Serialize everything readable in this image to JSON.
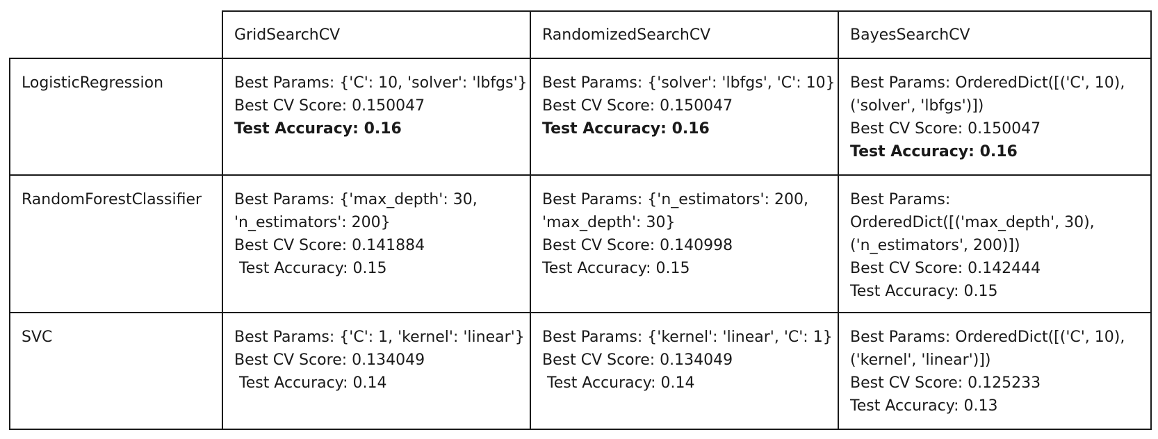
{
  "columns": [
    "GridSearchCV",
    "RandomizedSearchCV",
    "BayesSearchCV"
  ],
  "rows": [
    {
      "model": "LogisticRegression",
      "cells": [
        [
          "Best Params: {'C': 10, 'solver': 'lbfgs'}",
          "Best CV Score: 0.150047",
          "Test Accuracy: 0.16"
        ],
        [
          "Best Params: {'solver': 'lbfgs', 'C': 10}",
          "Best CV Score: 0.150047",
          "Test Accuracy: 0.16"
        ],
        [
          "Best Params: OrderedDict([('C', 10),",
          "('solver', 'lbfgs')])",
          "Best CV Score: 0.150047",
          "Test Accuracy: 0.16"
        ]
      ]
    },
    {
      "model": "RandomForestClassifier",
      "cells": [
        [
          "Best Params: {'max_depth': 30,",
          "'n_estimators': 200}",
          "Best CV Score: 0.141884",
          " Test Accuracy: 0.15"
        ],
        [
          "Best Params: {'n_estimators': 200,",
          "'max_depth': 30}",
          "Best CV Score: 0.140998",
          "Test Accuracy: 0.15"
        ],
        [
          "Best Params:",
          "OrderedDict([('max_depth', 30),",
          "('n_estimators', 200)])",
          "Best CV Score: 0.142444",
          "Test Accuracy: 0.15"
        ]
      ]
    },
    {
      "model": "SVC",
      "cells": [
        [
          "Best Params: {'C': 1, 'kernel': 'linear'}",
          "Best CV Score: 0.134049",
          " Test Accuracy: 0.14"
        ],
        [
          "Best Params: {'kernel': 'linear', 'C': 1}",
          "Best CV Score: 0.134049",
          " Test Accuracy: 0.14"
        ],
        [
          "Best Params: OrderedDict([('C', 10),",
          "('kernel', 'linear')])",
          "Best CV Score: 0.125233",
          "Test Accuracy: 0.13"
        ]
      ]
    }
  ]
}
